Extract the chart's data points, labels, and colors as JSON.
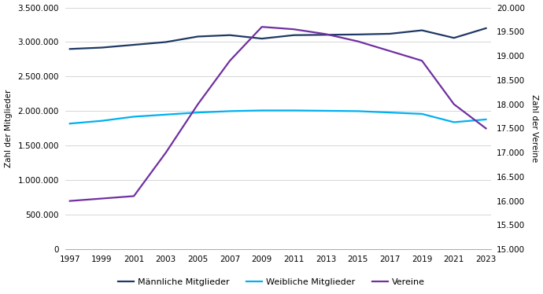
{
  "years": [
    1997,
    1999,
    2001,
    2003,
    2005,
    2007,
    2009,
    2011,
    2013,
    2015,
    2017,
    2019,
    2021,
    2023
  ],
  "maennlich": [
    2900000,
    2920000,
    2960000,
    3000000,
    3080000,
    3100000,
    3050000,
    3100000,
    3105000,
    3110000,
    3120000,
    3170000,
    3060000,
    3200000
  ],
  "weiblich": [
    1820000,
    1860000,
    1920000,
    1950000,
    1980000,
    2000000,
    2010000,
    2010000,
    2005000,
    2000000,
    1980000,
    1960000,
    1840000,
    1880000
  ],
  "vereine": [
    16000,
    16050,
    16100,
    17000,
    18000,
    18900,
    19600,
    19550,
    19450,
    19300,
    19100,
    18900,
    18000,
    17500
  ],
  "left_ylim": [
    0,
    3500000
  ],
  "right_ylim": [
    15000,
    20000
  ],
  "left_yticks": [
    0,
    500000,
    1000000,
    1500000,
    2000000,
    2500000,
    3000000,
    3500000
  ],
  "right_yticks": [
    15000,
    15500,
    16000,
    16500,
    17000,
    17500,
    18000,
    18500,
    19000,
    19500,
    20000
  ],
  "color_maennlich": "#1f3864",
  "color_weiblich": "#00b0f0",
  "color_vereine": "#7030a0",
  "ylabel_left": "Zahl der Mitglieder",
  "ylabel_right": "Zahl der Vereine",
  "legend_labels": [
    "Männliche Mitglieder",
    "Weibliche Mitglieder",
    "Vereine"
  ],
  "background_color": "#ffffff",
  "grid_color": "#d0d0d0",
  "figsize": [
    6.9,
    3.74
  ],
  "dpi": 100
}
